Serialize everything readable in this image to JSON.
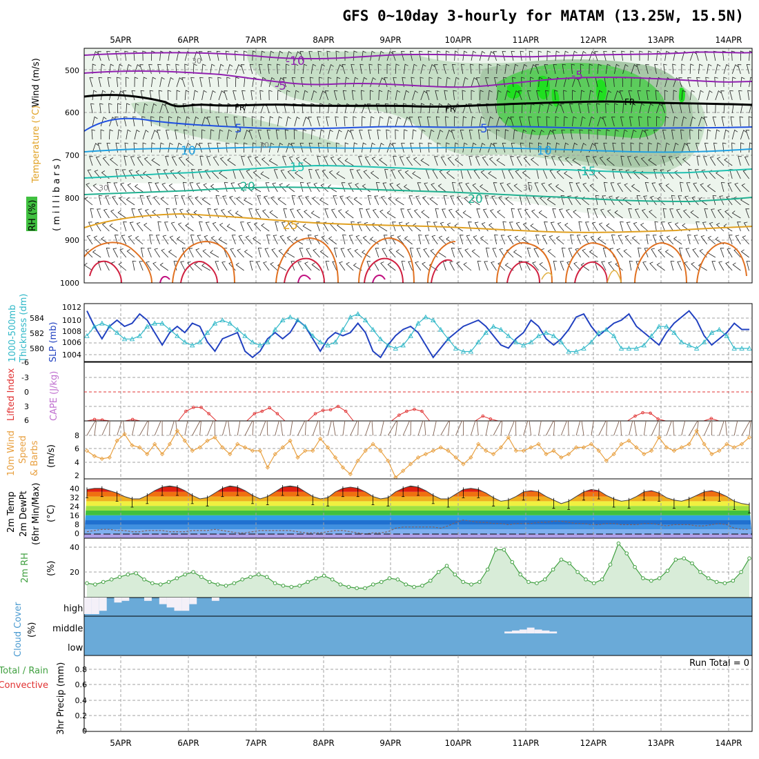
{
  "title": "GFS 0~10day 3-hourly for MATAM (13.25W, 15.5N)",
  "dates": [
    "5APR",
    "6APR",
    "7APR",
    "8APR",
    "9APR",
    "10APR",
    "11APR",
    "12APR",
    "13APR",
    "14APR"
  ],
  "colors": {
    "temp_warm": "#e07020",
    "temp_hot": "#d02040",
    "temp_cool": "#20b0a0",
    "temp_cold": "#2060e0",
    "temp_neg": "#8020b0",
    "freezing": "#000000",
    "rh_light": "#e8f2e8",
    "rh_mid": "#b8d8b8",
    "rh_high": "#40c040",
    "slp": "#2040c0",
    "thickness": "#30b8c8",
    "lifted": "#e03030",
    "wind10": "#e8a040",
    "rh2m": "#40a040",
    "cloud": "#6aaad8",
    "cloud_clear": "#f4f0f8"
  },
  "panels": {
    "upper": {
      "ylabels": [
        "Wind (m/s)",
        "Temperature (°C)",
        "RH (%)",
        "(millibars)"
      ],
      "yticks": [
        "500",
        "600",
        "700",
        "800",
        "900",
        "1000"
      ],
      "contour_labels": [
        "-10",
        "-5",
        "FR",
        "FR",
        "FR",
        "-5",
        "5",
        "5",
        "10",
        "10",
        "15",
        "15",
        "20",
        "20",
        "25",
        "30",
        "30",
        "30",
        "30"
      ]
    },
    "slp": {
      "ylabels": [
        "1000-500mb",
        "Thickness (dm)",
        "SLP (mb)"
      ],
      "left_ticks": [
        "584",
        "582",
        "580"
      ],
      "right_ticks": [
        "1012",
        "1010",
        "1008",
        "1006",
        "1004"
      ]
    },
    "cape": {
      "ylabels": [
        "Lifted Index",
        "CAPE (J/kg)"
      ],
      "ticks": [
        "-6",
        "-3",
        "0",
        "3",
        "6"
      ]
    },
    "wind10": {
      "ylabels": [
        "10m Wind",
        "Speed",
        "& Barbs",
        "(m/s)"
      ],
      "ticks": [
        "8",
        "6",
        "4",
        "2"
      ]
    },
    "temp2m": {
      "ylabels": [
        "2m Temp",
        "2m DewPt",
        "(6hr Min/Max)",
        "(°C)"
      ],
      "ticks": [
        "40",
        "32",
        "24",
        "16",
        "8",
        "0"
      ]
    },
    "rh2m": {
      "ylabels": [
        "2m RH",
        "(%)"
      ],
      "ticks": [
        "40",
        "20"
      ]
    },
    "cloud": {
      "ylabels": [
        "Cloud Cover",
        "(%)"
      ],
      "levels": [
        "high",
        "middle",
        "low"
      ]
    },
    "precip": {
      "ylabels": [
        "Total / Rain",
        "Convective",
        "3hr Precip (mm)"
      ],
      "ticks": [
        "0.8",
        "0.6",
        "0.4",
        "0.2",
        "0"
      ],
      "run_total": "Run Total = 0"
    }
  },
  "chart_data": [
    {
      "type": "line",
      "title": "SLP (mb)",
      "x_unit": "3-hourly from 5APR 00Z",
      "series": [
        {
          "name": "SLP (mb)",
          "values": [
            1011.5,
            1009,
            1007,
            1009,
            1010,
            1009,
            1009.5,
            1011,
            1010,
            1008,
            1006,
            1008,
            1009,
            1008,
            1009.5,
            1009,
            1006.5,
            1005,
            1007,
            1007.5,
            1008,
            1005,
            1004,
            1005,
            1007,
            1008,
            1007,
            1008,
            1010,
            1009,
            1007,
            1005,
            1007,
            1008,
            1007.5,
            1008,
            1009.5,
            1008,
            1005,
            1004,
            1006,
            1007.5,
            1008.5,
            1009,
            1008,
            1006,
            1004,
            1005.5,
            1007,
            1008,
            1009,
            1009.5,
            1010,
            1009,
            1007.5,
            1006,
            1005.5,
            1007,
            1008,
            1010,
            1009,
            1007,
            1006,
            1007,
            1008.5,
            1010.5,
            1011,
            1009,
            1007.5,
            1008.5,
            1009.5,
            1010,
            1011,
            1009,
            1008,
            1007,
            1006,
            1008,
            1009.5,
            1010.5,
            1011.5,
            1010,
            1007.5,
            1006,
            1007,
            1008,
            1009.5,
            1008.5,
            1008.5
          ]
        }
      ]
    },
    {
      "type": "line",
      "title": "1000-500mb Thickness (dm)",
      "series": [
        {
          "name": "Thickness (dm)",
          "values": [
            582,
            583.5,
            584,
            583.5,
            582.5,
            581.5,
            581.5,
            582,
            583.5,
            584,
            584,
            583,
            582,
            581,
            580.5,
            581,
            582.5,
            584,
            584.5,
            584,
            583,
            582,
            581,
            580.5,
            581,
            583,
            584.5,
            585,
            584.5,
            583.5,
            582,
            581,
            580.5,
            581,
            583,
            585,
            585.5,
            584.5,
            583,
            581.5,
            580.5,
            580,
            580.5,
            582,
            584,
            585,
            584.5,
            583,
            581.5,
            580,
            579.5,
            579.5,
            581,
            582.5,
            583.5,
            583,
            582,
            581,
            580.5,
            581,
            582,
            582.5,
            582,
            581,
            579.5,
            579.5,
            580,
            581,
            582.5,
            583,
            582,
            580,
            580,
            580,
            580.5,
            582,
            583.5,
            583.5,
            582.5,
            581,
            580.5,
            580,
            581,
            582.5,
            583,
            582,
            580,
            580,
            580
          ]
        }
      ]
    },
    {
      "type": "line",
      "title": "Lifted Index",
      "series": [
        {
          "name": "Lifted Index",
          "values": [
            6,
            5.7,
            5.8,
            6,
            6,
            6,
            5.7,
            6,
            6,
            6,
            6,
            6,
            6,
            4,
            3.2,
            3.2,
            4.5,
            6,
            6,
            6,
            6,
            6,
            4.5,
            4,
            3.3,
            4.5,
            6,
            6,
            6,
            6,
            4.5,
            3.8,
            3.7,
            3,
            4,
            6,
            6,
            6,
            6,
            6,
            6,
            4.8,
            4,
            3.6,
            4,
            6,
            6,
            6,
            6,
            6,
            6,
            6,
            5,
            5.6,
            6,
            6,
            6,
            6,
            6,
            6,
            6,
            6,
            6,
            6,
            6,
            6,
            6,
            6,
            6,
            6,
            6,
            6,
            5,
            4.3,
            4.4,
            5.6,
            6,
            6,
            6,
            6,
            6,
            6,
            5.5,
            6,
            6,
            6,
            6,
            6
          ]
        }
      ]
    },
    {
      "type": "line",
      "title": "10m Wind Speed (m/s)",
      "series": [
        {
          "name": "10m Wind Speed (m/s)",
          "values": [
            6,
            5.2,
            4.8,
            5,
            7.5,
            8.5,
            6.8,
            6.5,
            5.5,
            7,
            5.5,
            7,
            9,
            7.5,
            6,
            6.5,
            7.5,
            8,
            6.5,
            5.5,
            7,
            6.5,
            6,
            6,
            3.5,
            5.5,
            6.5,
            7.5,
            5,
            6,
            6,
            7.8,
            6.5,
            5,
            3.5,
            2.5,
            4.5,
            6,
            7,
            6,
            4.5,
            2,
            3,
            4,
            5,
            5.5,
            6,
            6.5,
            6,
            5,
            4,
            5,
            7,
            6,
            5.5,
            6.5,
            8,
            6,
            6,
            6.5,
            7,
            5.5,
            6,
            5,
            5.5,
            6.5,
            6.5,
            7,
            6,
            4.5,
            5.5,
            7,
            7.5,
            6.5,
            5.5,
            6,
            8,
            6.5,
            6,
            6.5,
            7,
            9,
            7,
            5.5,
            6,
            7,
            6.5,
            7,
            8
          ]
        }
      ]
    },
    {
      "type": "area",
      "title": "2m Temp (°C)",
      "series": [
        {
          "name": "2m Temp (°C)",
          "values": [
            38,
            39,
            39,
            37,
            35,
            32,
            30,
            30,
            33,
            37,
            40,
            41,
            40,
            37,
            33,
            30,
            31,
            35,
            39,
            41,
            40,
            37,
            33,
            30,
            32,
            36,
            40,
            41,
            40,
            36,
            32,
            30,
            31,
            36,
            39,
            40,
            39,
            36,
            32,
            30,
            31,
            36,
            39,
            41,
            40,
            37,
            33,
            30,
            30,
            34,
            38,
            39,
            38,
            35,
            31,
            28,
            29,
            32,
            36,
            37,
            36,
            32,
            29,
            26,
            28,
            32,
            36,
            38,
            37,
            33,
            30,
            28,
            29,
            32,
            36,
            37,
            35,
            31,
            29,
            28,
            30,
            33,
            36,
            37,
            35,
            32,
            28,
            26,
            25
          ]
        },
        {
          "name": "2m DewPt (°C)",
          "values": [
            2,
            3,
            4,
            4,
            3,
            3,
            2,
            2,
            3,
            3,
            3,
            2,
            2,
            2,
            3,
            3,
            3,
            4,
            3,
            2,
            1,
            1,
            2,
            3,
            3,
            3,
            3,
            3,
            2,
            1,
            1,
            1,
            2,
            3,
            3,
            2,
            1,
            0,
            1,
            1,
            2,
            5,
            6,
            6,
            6,
            6,
            6,
            5,
            7,
            10,
            12,
            11,
            10,
            10,
            9,
            9,
            8,
            9,
            9,
            9,
            10,
            10,
            11,
            11,
            10,
            9,
            9,
            8,
            8,
            9,
            9,
            8,
            8,
            8,
            9,
            9,
            8,
            7,
            8,
            8,
            8,
            7,
            7,
            8,
            9,
            8,
            5,
            4,
            4
          ]
        }
      ]
    },
    {
      "type": "area",
      "title": "2m RH (%)",
      "series": [
        {
          "name": "2m RH (%)",
          "values": [
            11,
            10,
            12,
            14,
            16,
            18,
            19,
            14,
            11,
            10,
            12,
            15,
            18,
            20,
            16,
            12,
            10,
            9,
            11,
            14,
            16,
            18,
            16,
            11,
            9,
            8,
            9,
            12,
            15,
            17,
            14,
            10,
            8,
            7,
            7,
            10,
            12,
            15,
            14,
            10,
            8,
            9,
            13,
            20,
            25,
            18,
            12,
            10,
            12,
            22,
            38,
            38,
            28,
            18,
            12,
            11,
            14,
            22,
            30,
            27,
            20,
            14,
            11,
            14,
            26,
            43,
            35,
            24,
            15,
            13,
            15,
            21,
            30,
            31,
            27,
            20,
            15,
            12,
            11,
            13,
            20,
            31
          ]
        }
      ]
    },
    {
      "type": "bar",
      "title": "Cloud Cover (%)",
      "series": [
        {
          "name": "high",
          "values": [
            100,
            100,
            80,
            0,
            30,
            20,
            0,
            0,
            20,
            0,
            40,
            60,
            80,
            80,
            40,
            0,
            0,
            20,
            0,
            0,
            0,
            0,
            0,
            0,
            0,
            0,
            0,
            0,
            0,
            0,
            0,
            0,
            0,
            0,
            0,
            0,
            0,
            0,
            0,
            0,
            0,
            0,
            0,
            0,
            0,
            0,
            0,
            0,
            0,
            0,
            0,
            0,
            0,
            0,
            0,
            0,
            0,
            0,
            0,
            0,
            0,
            0,
            0,
            0,
            0,
            0,
            0,
            0,
            0,
            0,
            0,
            0,
            0,
            0,
            0,
            0,
            0,
            0,
            0,
            0,
            0,
            0,
            0,
            0,
            0,
            0,
            0,
            0,
            0
          ]
        },
        {
          "name": "middle",
          "values": [
            0,
            0,
            0,
            0,
            0,
            0,
            0,
            0,
            0,
            0,
            0,
            0,
            0,
            0,
            0,
            0,
            0,
            0,
            0,
            0,
            0,
            0,
            0,
            0,
            0,
            0,
            0,
            0,
            0,
            0,
            0,
            0,
            0,
            0,
            0,
            0,
            0,
            0,
            0,
            0,
            0,
            0,
            0,
            0,
            0,
            0,
            0,
            0,
            0,
            0,
            0,
            0,
            0,
            0,
            0,
            0,
            20,
            30,
            40,
            60,
            40,
            30,
            20,
            0,
            0,
            0,
            0,
            0,
            0,
            0,
            0,
            0,
            0,
            0,
            0,
            0,
            0,
            0,
            0,
            0,
            0,
            0,
            0,
            0,
            0,
            0,
            0,
            0,
            0
          ]
        }
      ]
    },
    {
      "type": "bar",
      "title": "3hr Precip (mm)",
      "ylim": [
        0,
        0.9
      ],
      "series": [
        {
          "name": "3hr Precip (mm)",
          "values": [
            0,
            0,
            0,
            0,
            0,
            0,
            0,
            0,
            0,
            0,
            0,
            0,
            0,
            0,
            0,
            0,
            0,
            0,
            0,
            0,
            0,
            0,
            0,
            0,
            0,
            0,
            0,
            0,
            0,
            0,
            0,
            0,
            0,
            0,
            0,
            0,
            0,
            0,
            0,
            0,
            0,
            0,
            0,
            0,
            0,
            0,
            0,
            0,
            0,
            0,
            0,
            0,
            0,
            0,
            0,
            0,
            0,
            0,
            0,
            0,
            0,
            0,
            0,
            0,
            0,
            0,
            0,
            0,
            0,
            0,
            0,
            0,
            0,
            0,
            0,
            0,
            0,
            0,
            0,
            0,
            0,
            0,
            0,
            0,
            0,
            0,
            0,
            0,
            0
          ]
        }
      ]
    }
  ]
}
